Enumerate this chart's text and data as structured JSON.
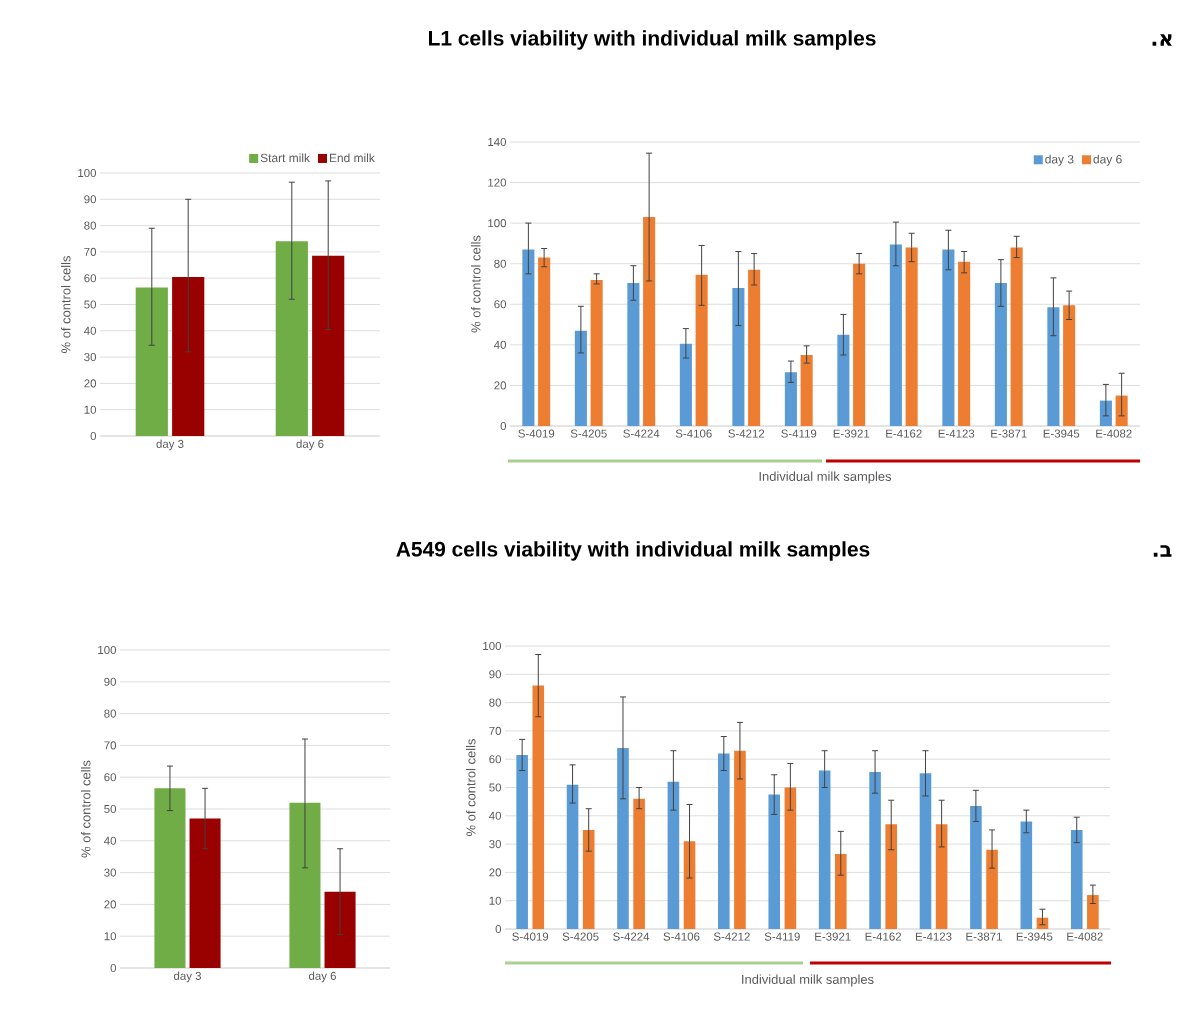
{
  "chart_data": [
    {
      "type": "other",
      "title": "L1 cells viability with individual milk samples",
      "annotations": [
        ".א"
      ]
    },
    {
      "type": "bar",
      "categories": [
        "day 3",
        "day 6"
      ],
      "ylabel": "% of control cells",
      "ylim": [
        0,
        100
      ],
      "yticks": [
        0,
        10,
        20,
        30,
        40,
        50,
        60,
        70,
        80,
        90,
        100
      ],
      "grid": "y",
      "legend": "top right",
      "series": [
        {
          "name": "Start milk",
          "color": "#70ad47",
          "values": [
            56.5,
            74
          ],
          "errors": [
            [
              34.5,
              79
            ],
            [
              52,
              96.5
            ]
          ]
        },
        {
          "name": "End milk",
          "color": "#990000",
          "values": [
            60.5,
            68.5
          ],
          "errors": [
            [
              32,
              90
            ],
            [
              40.5,
              97
            ]
          ]
        }
      ]
    },
    {
      "type": "bar",
      "categories": [
        "S-4019",
        "S-4205",
        "S-4224",
        "S-4106",
        "S-4212",
        "S-4119",
        "E-3921",
        "E-4162",
        "E-4123",
        "E-3871",
        "E-3945",
        "E-4082"
      ],
      "xlabel": "Individual milk samples",
      "ylabel": "% of control cells",
      "ylim": [
        0,
        140
      ],
      "yticks": [
        0,
        20,
        40,
        60,
        80,
        100,
        120,
        140
      ],
      "grid": "y",
      "legend": "top right",
      "series": [
        {
          "name": "day 3",
          "color": "#5b9bd5",
          "values": [
            87,
            47,
            70.5,
            40.5,
            68,
            26.5,
            45,
            89.5,
            87,
            70.5,
            58.5,
            12.5
          ],
          "errors": [
            [
              75,
              100
            ],
            [
              36,
              59
            ],
            [
              62,
              79
            ],
            [
              33.5,
              48
            ],
            [
              49.5,
              86
            ],
            [
              21.5,
              32
            ],
            [
              35,
              55
            ],
            [
              79,
              100.5
            ],
            [
              77,
              96.5
            ],
            [
              59,
              82
            ],
            [
              44.5,
              73
            ],
            [
              5,
              20.5
            ]
          ]
        },
        {
          "name": "day 6",
          "color": "#ed7d31",
          "values": [
            83,
            72,
            103,
            74.5,
            77,
            35,
            80,
            88,
            81,
            88,
            59.5,
            15
          ],
          "errors": [
            [
              78.5,
              87.5
            ],
            [
              70,
              75
            ],
            [
              71.5,
              134.5
            ],
            [
              59.5,
              89
            ],
            [
              69.5,
              85
            ],
            [
              31,
              39.5
            ],
            [
              75,
              85
            ],
            [
              81,
              95
            ],
            [
              75.5,
              86
            ],
            [
              83,
              93.5
            ],
            [
              52.5,
              66.5
            ],
            [
              5,
              26
            ]
          ]
        }
      ]
    },
    {
      "type": "other",
      "title": "A549 cells viability with individual milk samples",
      "annotations": [
        ".ב"
      ]
    },
    {
      "type": "bar",
      "categories": [
        "day 3",
        "day 6"
      ],
      "ylabel": "% of control cells",
      "ylim": [
        0,
        100
      ],
      "yticks": [
        0,
        10,
        20,
        30,
        40,
        50,
        60,
        70,
        80,
        90,
        100
      ],
      "grid": "y",
      "series": [
        {
          "color": "#70ad47",
          "values": [
            56.5,
            52
          ],
          "errors": [
            [
              49.5,
              63.5
            ],
            [
              31.5,
              72
            ]
          ]
        },
        {
          "color": "#990000",
          "values": [
            47,
            24
          ],
          "errors": [
            [
              37.5,
              56.5
            ],
            [
              10.5,
              37.5
            ]
          ]
        }
      ]
    },
    {
      "type": "bar",
      "categories": [
        "S-4019",
        "S-4205",
        "S-4224",
        "S-4106",
        "S-4212",
        "S-4119",
        "E-3921",
        "E-4162",
        "E-4123",
        "E-3871",
        "E-3945",
        "E-4082"
      ],
      "xlabel": "Individual milk samples",
      "ylabel": "% of control cells",
      "ylim": [
        0,
        100
      ],
      "yticks": [
        0,
        10,
        20,
        30,
        40,
        50,
        60,
        70,
        80,
        90,
        100
      ],
      "grid": "y",
      "series": [
        {
          "color": "#5b9bd5",
          "values": [
            61.5,
            51,
            64,
            52,
            62,
            47.5,
            56,
            55.5,
            55,
            43.5,
            38,
            35
          ],
          "errors": [
            [
              56,
              67
            ],
            [
              44.5,
              58
            ],
            [
              46,
              82
            ],
            [
              42,
              63
            ],
            [
              56,
              68
            ],
            [
              40.5,
              54.5
            ],
            [
              50,
              63
            ],
            [
              48,
              63
            ],
            [
              47,
              63
            ],
            [
              38,
              49
            ],
            [
              34,
              42
            ],
            [
              30.5,
              39.5
            ]
          ]
        },
        {
          "color": "#ed7d31",
          "values": [
            86,
            35,
            46,
            31,
            63,
            50,
            26.5,
            37,
            37,
            28,
            4,
            12
          ],
          "errors": [
            [
              75,
              97
            ],
            [
              27.5,
              42.5
            ],
            [
              42.5,
              50
            ],
            [
              18,
              44
            ],
            [
              53,
              73
            ],
            [
              42,
              58.5
            ],
            [
              19,
              34.5
            ],
            [
              28,
              45.5
            ],
            [
              29,
              45.5
            ],
            [
              21.5,
              35
            ],
            [
              1.5,
              7
            ],
            [
              9,
              15.5
            ]
          ]
        }
      ]
    }
  ]
}
